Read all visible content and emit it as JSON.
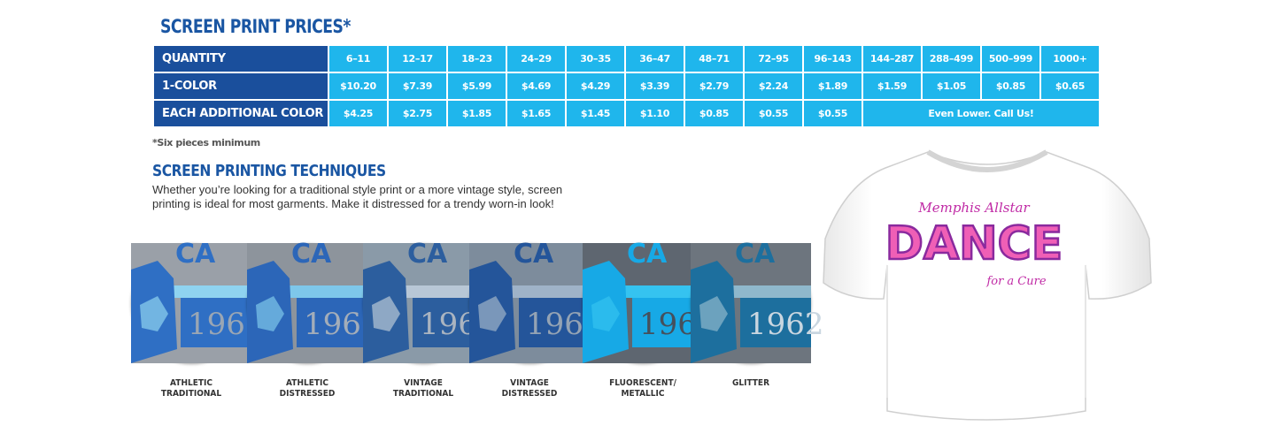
{
  "title": "SCREEN PRINT PRICES*",
  "price_table": {
    "header_label": "QUANTITY",
    "quantities": [
      "6–11",
      "12–17",
      "18–23",
      "24–29",
      "30–35",
      "36–47",
      "48–71",
      "72–95",
      "96–143",
      "144–287",
      "288–499",
      "500–999",
      "1000+"
    ],
    "one_color_label": "1-COLOR",
    "one_color_prices": [
      "$10.20",
      "$7.39",
      "$5.99",
      "$4.69",
      "$4.29",
      "$3.39",
      "$2.79",
      "$2.24",
      "$1.89",
      "$1.59",
      "$1.05",
      "$0.85",
      "$0.65"
    ],
    "additional_label": "EACH ADDITIONAL COLOR",
    "additional_prices": [
      "$4.25",
      "$2.75",
      "$1.85",
      "$1.65",
      "$1.45",
      "$1.10",
      "$0.85",
      "$0.55",
      "$0.55"
    ],
    "additional_note": "Even Lower. Call Us!"
  },
  "footnote": "*Six pieces minimum",
  "techniques": {
    "title": "SCREEN PRINTING TECHNIQUES",
    "description": "Whether you’re looking for a traditional style print or a more vintage style, screen printing is ideal for most garments. Make it distressed for a trendy worn-in look!",
    "swatch_text": "1962",
    "swatch_top_text": "CA",
    "items": [
      {
        "line1": "ATHLETIC",
        "line2": "TRADITIONAL",
        "bg": "#9aa0a8",
        "stripe": "#8fd3f0",
        "main": "#2f6fc4",
        "text": "#9aa6b4"
      },
      {
        "line1": "ATHLETIC",
        "line2": "DISTRESSED",
        "bg": "#8d949c",
        "stripe": "#7ec7ea",
        "main": "#2c66b8",
        "text": "#a3adb9"
      },
      {
        "line1": "VINTAGE",
        "line2": "TRADITIONAL",
        "bg": "#8a9aa8",
        "stripe": "#b8c7d6",
        "main": "#2c5e9e",
        "text": "#aab4c0"
      },
      {
        "line1": "VINTAGE",
        "line2": "DISTRESSED",
        "bg": "#7d8c9c",
        "stripe": "#9fb3c8",
        "main": "#24559a",
        "text": "#94a3b4"
      },
      {
        "line1": "FLUORESCENT/",
        "line2": "METALLIC",
        "bg": "#5e6670",
        "stripe": "#35c3f0",
        "main": "#17a9e6",
        "text": "#45505c"
      },
      {
        "line1": "",
        "line2": "GLITTER",
        "bg": "#6d757e",
        "stripe": "#8fb8cc",
        "main": "#1d6f9e",
        "text": "#c9d6e0"
      }
    ]
  },
  "shirt": {
    "line1": "Memphis Allstar",
    "line2": "DANCE",
    "line3": "for a Cure",
    "colors": {
      "script": "#c02aa5",
      "dance_fill": "#ef5fb6",
      "dance_dots": "#8a2a9e"
    }
  }
}
